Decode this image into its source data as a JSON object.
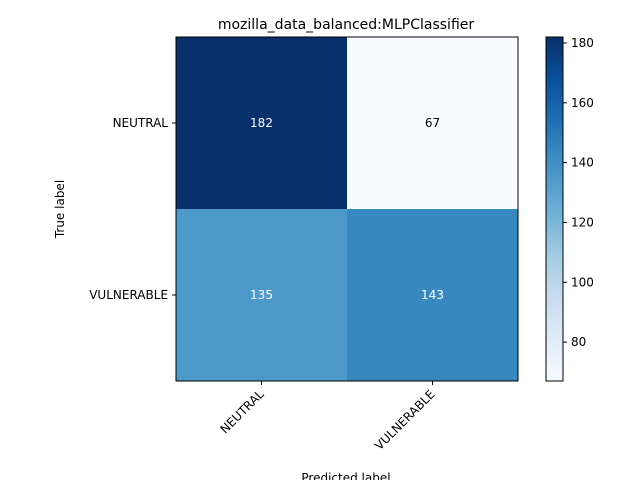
{
  "chart_data": {
    "type": "heatmap",
    "title": "mozilla_data_balanced:MLPClassifier",
    "xlabel": "Predicted label",
    "ylabel": "True label",
    "x_categories": [
      "NEUTRAL",
      "VULNERABLE"
    ],
    "y_categories": [
      "NEUTRAL",
      "VULNERABLE"
    ],
    "matrix": [
      [
        182,
        67
      ],
      [
        135,
        143
      ]
    ],
    "colormap": "Blues",
    "colorbar": {
      "min": 67,
      "max": 182,
      "ticks": [
        80,
        100,
        120,
        140,
        160,
        180
      ]
    },
    "text_colors": {
      "dark_cell": "#ffffff",
      "light_cell": "#000000"
    }
  }
}
